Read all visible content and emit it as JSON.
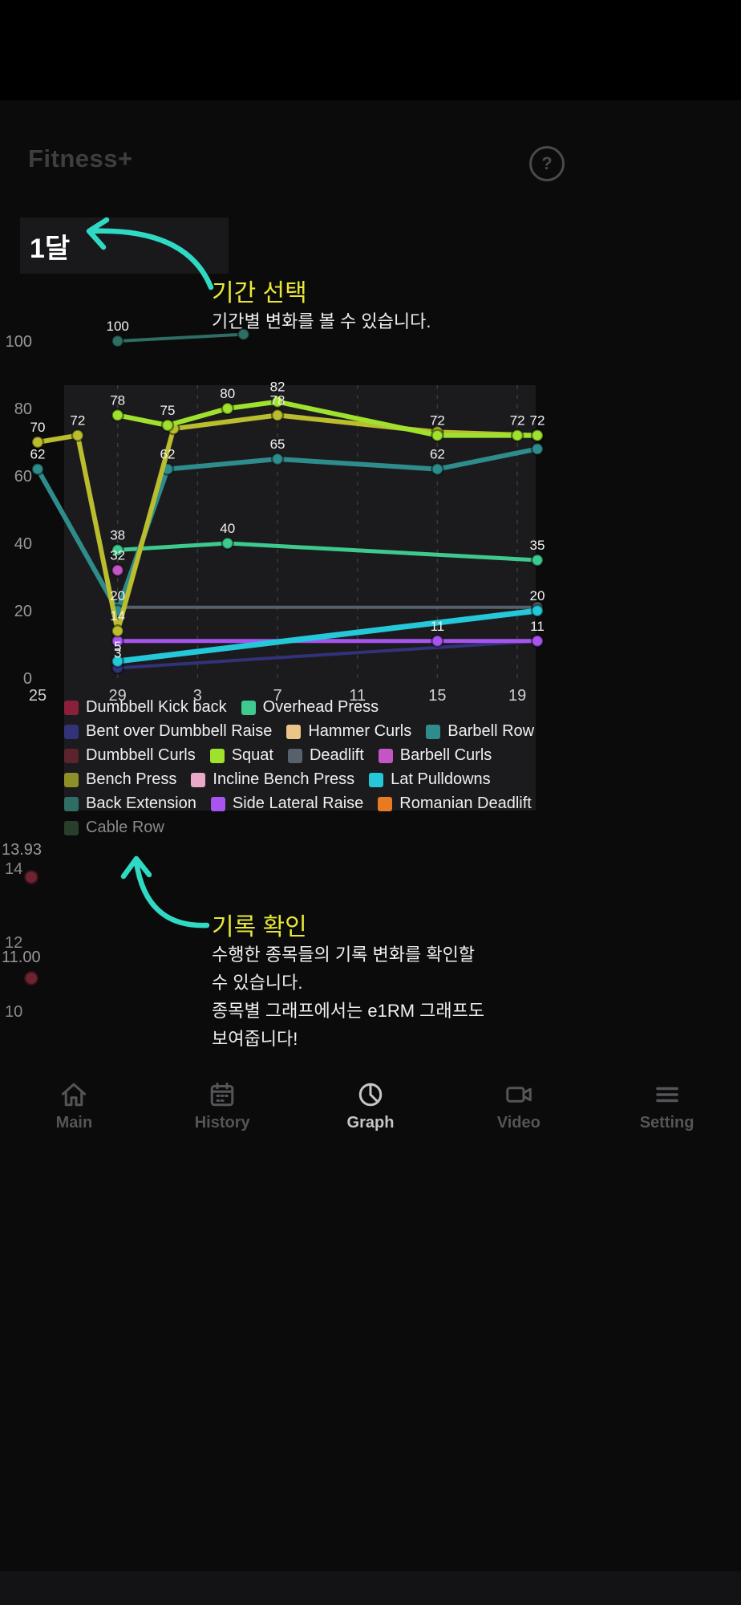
{
  "app": {
    "title": "Fitness+",
    "help_icon": "?"
  },
  "period_selector": {
    "label": "1달"
  },
  "tutorial": {
    "accent_color": "#2fd9c3",
    "title_color": "#e8e838",
    "period": {
      "title": "기간 선택",
      "desc": "기간별 변화를 볼 수 있습니다."
    },
    "record": {
      "title": "기록 확인",
      "desc_lines": [
        "수행한 종목들의 기록 변화를 확인할",
        "수 있습니다.",
        "종목별 그래프에서는 e1RM 그래프도",
        "보여줍니다!"
      ]
    }
  },
  "chart_data": {
    "type": "line",
    "title": "",
    "xlabel": "",
    "ylabel": "",
    "ylim": [
      0,
      105
    ],
    "grid": "dashed-vertical",
    "x_ticks": {
      "t": [
        0,
        4,
        8,
        12,
        16,
        20,
        24
      ],
      "labels": [
        "25",
        "29",
        "3",
        "7",
        "11",
        "15",
        "19"
      ]
    },
    "y_ticks": [
      0,
      20,
      40,
      60,
      80,
      100
    ],
    "series": [
      {
        "name": "Back Extension",
        "color": "#2e6e64",
        "width": 4,
        "points": [
          [
            4,
            100,
            "100"
          ],
          [
            10.3,
            102,
            ""
          ]
        ]
      },
      {
        "name": "Bent over Dumbbell Raise",
        "color": "#32327a",
        "width": 4,
        "points": [
          [
            4,
            3,
            "3"
          ],
          [
            25,
            11,
            "11"
          ]
        ]
      },
      {
        "name": "Deadlift",
        "color": "#57616c",
        "width": 4,
        "points": [
          [
            4,
            21,
            ""
          ],
          [
            25,
            21,
            ""
          ]
        ]
      },
      {
        "name": "Side Lateral Raise",
        "color": "#a855f0",
        "width": 5,
        "points": [
          [
            4,
            11,
            ""
          ],
          [
            20,
            11,
            "11"
          ],
          [
            25,
            11,
            ""
          ]
        ]
      },
      {
        "name": "Barbell Curls",
        "color": "#c455c4",
        "width": 4,
        "points": [
          [
            4,
            32,
            "32"
          ]
        ]
      },
      {
        "name": "Overhead Press",
        "color": "#3ec98e",
        "width": 5,
        "points": [
          [
            4,
            38,
            "38"
          ],
          [
            9.5,
            40,
            "40"
          ],
          [
            25,
            35,
            "35"
          ]
        ]
      },
      {
        "name": "Barbell Row",
        "color": "#2e8c8c",
        "width": 6,
        "points": [
          [
            0,
            62,
            "62"
          ],
          [
            4,
            20,
            "20"
          ],
          [
            6.5,
            62,
            "62"
          ],
          [
            12,
            65,
            "65"
          ],
          [
            20,
            62,
            "62"
          ],
          [
            25,
            68,
            ""
          ]
        ]
      },
      {
        "name": "Bench Press",
        "color": "#b9bd2e",
        "width": 6,
        "points": [
          [
            0,
            70,
            "70"
          ],
          [
            2,
            72,
            "72"
          ],
          [
            4,
            14,
            "14"
          ],
          [
            6.8,
            74,
            ""
          ],
          [
            12,
            78,
            "78"
          ],
          [
            20,
            73,
            ""
          ],
          [
            25,
            72,
            "72"
          ]
        ]
      },
      {
        "name": "Squat",
        "color": "#9fe22e",
        "width": 6,
        "points": [
          [
            4,
            78,
            "78"
          ],
          [
            6.5,
            75,
            "75"
          ],
          [
            9.5,
            80,
            "80"
          ],
          [
            12,
            82,
            "82"
          ],
          [
            20,
            72,
            "72"
          ],
          [
            24,
            72,
            "72"
          ],
          [
            25,
            72,
            ""
          ]
        ]
      },
      {
        "name": "Lat Pulldowns",
        "color": "#25c8d8",
        "width": 7,
        "points": [
          [
            4,
            5,
            "5"
          ],
          [
            25,
            20,
            "20"
          ]
        ]
      }
    ]
  },
  "legend": {
    "rows": [
      [
        {
          "label": "Dumbbell Kick back",
          "color": "#8c1f3c"
        },
        {
          "label": "Overhead Press",
          "color": "#3ec98e"
        }
      ],
      [
        {
          "label": "Bent over Dumbbell Raise",
          "color": "#32327a"
        },
        {
          "label": "Hammer Curls",
          "color": "#ecc488"
        },
        {
          "label": "Barbell Row",
          "color": "#2e8c8c"
        }
      ],
      [
        {
          "label": "Dumbbell Curls",
          "color": "#5c232e"
        },
        {
          "label": "Squat",
          "color": "#9fe22e"
        },
        {
          "label": "Deadlift",
          "color": "#57616c"
        },
        {
          "label": "Barbell Curls",
          "color": "#c455c4"
        }
      ],
      [
        {
          "label": "Bench Press",
          "color": "#8f8f28"
        },
        {
          "label": "Incline Bench Press",
          "color": "#eaa8c8"
        },
        {
          "label": "Lat Pulldowns",
          "color": "#25c8d8"
        }
      ],
      [
        {
          "label": "Back Extension",
          "color": "#2e6e64"
        },
        {
          "label": "Side Lateral Raise",
          "color": "#a855f0"
        },
        {
          "label": "Romanian Deadlift",
          "color": "#e87a22"
        }
      ],
      [
        {
          "label": "Cable Row",
          "color": "#3f6b46",
          "dim": true
        }
      ]
    ]
  },
  "chart2_data": {
    "type": "line",
    "partial": true,
    "color": "#6e2331",
    "y_tick_labels": [
      "14",
      "12",
      "10"
    ],
    "data_labels": [
      "13.93",
      "11.00"
    ],
    "values": [
      13.93,
      11.0
    ]
  },
  "nav": {
    "items": [
      {
        "label": "Main",
        "icon": "home-icon",
        "active": false
      },
      {
        "label": "History",
        "icon": "calendar-icon",
        "active": false
      },
      {
        "label": "Graph",
        "icon": "graph-icon",
        "active": true
      },
      {
        "label": "Video",
        "icon": "video-icon",
        "active": false
      },
      {
        "label": "Setting",
        "icon": "menu-icon",
        "active": false
      }
    ]
  }
}
